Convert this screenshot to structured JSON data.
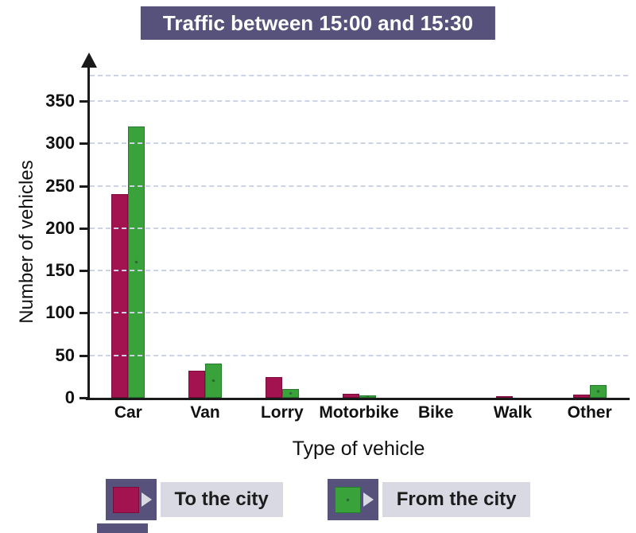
{
  "title": "Traffic between 15:00 and 15:30",
  "chart_data": {
    "type": "bar",
    "title": "Traffic between 15:00 and 15:30",
    "categories": [
      "Car",
      "Van",
      "Lorry",
      "Motorbike",
      "Bike",
      "Walk",
      "Other"
    ],
    "series": [
      {
        "name": "To the city",
        "color": "#a3134f",
        "border": "#7c0c3c",
        "values": [
          240,
          32,
          24,
          5,
          0,
          2,
          4
        ]
      },
      {
        "name": "From the city",
        "color": "#3aa23a",
        "border": "#277a2e",
        "dot": "#2e6b35",
        "pattern": "dots",
        "values": [
          320,
          40,
          10,
          3,
          0,
          0,
          15
        ]
      }
    ],
    "xlabel": "Type of vehicle",
    "ylabel": "Number of vehicles",
    "ylim": [
      0,
      380
    ],
    "yticks": [
      0,
      50,
      100,
      150,
      200,
      250,
      300,
      350
    ],
    "grid": true,
    "grid_style": "dashed",
    "legend_position": "bottom"
  },
  "colors": {
    "banner": "#56527b",
    "label_bg": "#d9d9e3",
    "grid": "#cdd2e6",
    "axis": "#1a1a1a",
    "text": "#111111"
  }
}
